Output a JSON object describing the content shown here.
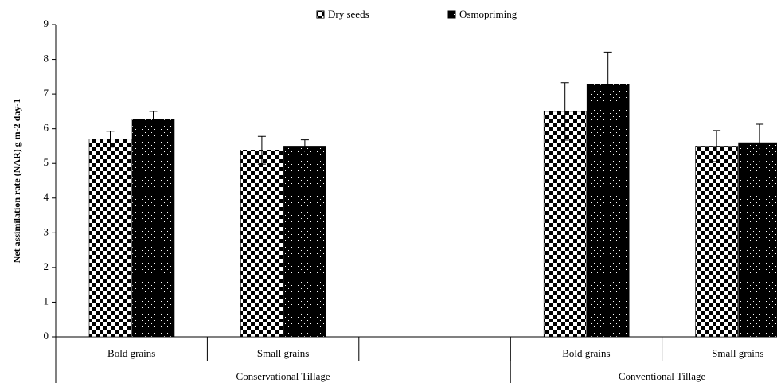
{
  "chart_data": {
    "type": "bar",
    "y_label": "Net assimilation rate (NAR) g m-2 day-1",
    "categories": [
      "Bold grains",
      "Small grains",
      null,
      "Bold grains",
      "Small grains"
    ],
    "groups": [
      {
        "label": "Conservational Tillage",
        "size": 3
      },
      {
        "label": "Conventional Tillage",
        "size": 2
      }
    ],
    "series": [
      {
        "name": "Dry seeds",
        "pattern": "checkerboard",
        "values": [
          5.7,
          5.38,
          null,
          6.5,
          5.5
        ],
        "errors": [
          0.23,
          0.4,
          null,
          0.83,
          0.45
        ]
      },
      {
        "name": "Osmopriming",
        "pattern": "dots",
        "values": [
          6.27,
          5.5,
          null,
          7.28,
          5.6
        ],
        "errors": [
          0.23,
          0.18,
          null,
          0.93,
          0.53
        ]
      }
    ],
    "ylim": [
      0,
      9
    ],
    "yticks": [
      0,
      1,
      2,
      3,
      4,
      5,
      6,
      7,
      8,
      9
    ],
    "legend": "top"
  }
}
